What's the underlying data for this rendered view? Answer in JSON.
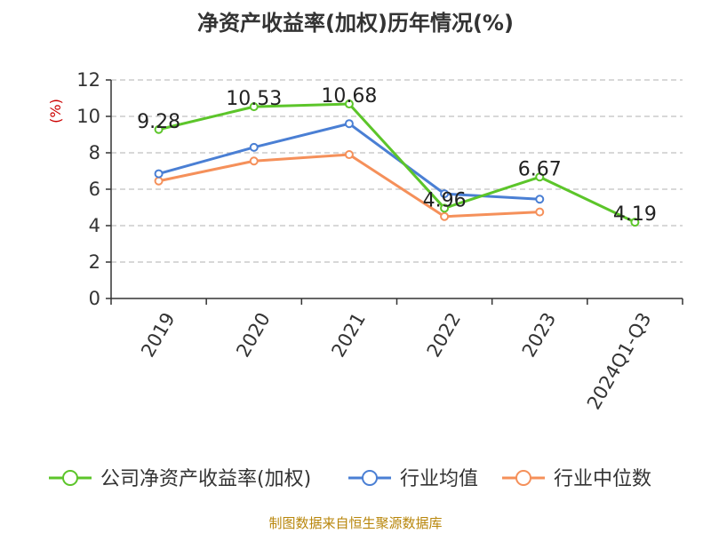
{
  "title": "净资产收益率(加权)历年情况(%)",
  "source_note": "制图数据来自恒生聚源数据库",
  "colors": {
    "series_company": "#5cc52a",
    "series_avg": "#4a7fd4",
    "series_median": "#f5905a",
    "grid": "#cccccc",
    "axis": "#333333",
    "unit": "#cc0000",
    "source": "#b8860b"
  },
  "chart_data": {
    "type": "line",
    "title": "净资产收益率(加权)历年情况(%)",
    "ylabel": "(%)",
    "xlabel": "",
    "categories": [
      "2019",
      "2020",
      "2021",
      "2022",
      "2023",
      "2024Q1-Q3"
    ],
    "ylim": [
      0,
      12
    ],
    "yticks": [
      0,
      2,
      4,
      6,
      8,
      10,
      12
    ],
    "grid": "horizontal dashed",
    "legend_position": "bottom",
    "series": [
      {
        "name": "公司净资产收益率(加权)",
        "values": [
          9.28,
          10.53,
          10.68,
          4.96,
          6.67,
          4.19
        ],
        "labels": [
          "9.28",
          "10.53",
          "10.68",
          "4.96",
          "6.67",
          "4.19"
        ]
      },
      {
        "name": "行业均值",
        "values": [
          6.85,
          8.3,
          9.6,
          5.75,
          5.45,
          null
        ]
      },
      {
        "name": "行业中位数",
        "values": [
          6.45,
          7.55,
          7.9,
          4.5,
          4.75,
          null
        ]
      }
    ]
  }
}
